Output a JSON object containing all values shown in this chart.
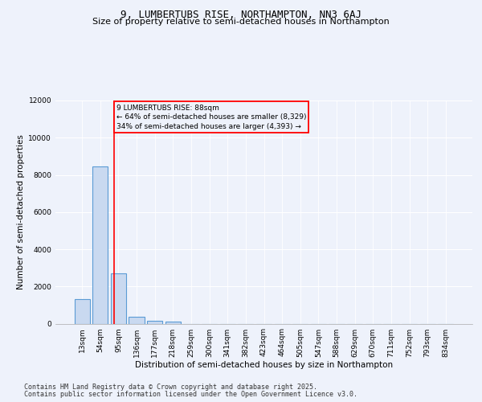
{
  "title1": "9, LUMBERTUBS RISE, NORTHAMPTON, NN3 6AJ",
  "title2": "Size of property relative to semi-detached houses in Northampton",
  "xlabel": "Distribution of semi-detached houses by size in Northampton",
  "ylabel": "Number of semi-detached properties",
  "categories": [
    "13sqm",
    "54sqm",
    "95sqm",
    "136sqm",
    "177sqm",
    "218sqm",
    "259sqm",
    "300sqm",
    "341sqm",
    "382sqm",
    "423sqm",
    "464sqm",
    "505sqm",
    "547sqm",
    "588sqm",
    "629sqm",
    "670sqm",
    "711sqm",
    "752sqm",
    "793sqm",
    "834sqm"
  ],
  "values": [
    1320,
    8450,
    2700,
    380,
    150,
    110,
    0,
    0,
    0,
    0,
    0,
    0,
    0,
    0,
    0,
    0,
    0,
    0,
    0,
    0,
    0
  ],
  "bar_color": "#c9d9f0",
  "bar_edge_color": "#5b9bd5",
  "bar_linewidth": 0.8,
  "vline_x": 1.78,
  "vline_color": "red",
  "vline_linewidth": 1.2,
  "annotation_title": "9 LUMBERTUBS RISE: 88sqm",
  "annotation_line1": "← 64% of semi-detached houses are smaller (8,329)",
  "annotation_line2": "34% of semi-detached houses are larger (4,393) →",
  "annotation_box_color": "red",
  "ylim": [
    0,
    12000
  ],
  "yticks": [
    0,
    2000,
    4000,
    6000,
    8000,
    10000,
    12000
  ],
  "footer1": "Contains HM Land Registry data © Crown copyright and database right 2025.",
  "footer2": "Contains public sector information licensed under the Open Government Licence v3.0.",
  "bg_color": "#eef2fb",
  "grid_color": "#ffffff",
  "title1_fontsize": 9,
  "title2_fontsize": 8,
  "axis_label_fontsize": 7.5,
  "tick_fontsize": 6.5,
  "footer_fontsize": 6,
  "annot_fontsize": 6.5
}
